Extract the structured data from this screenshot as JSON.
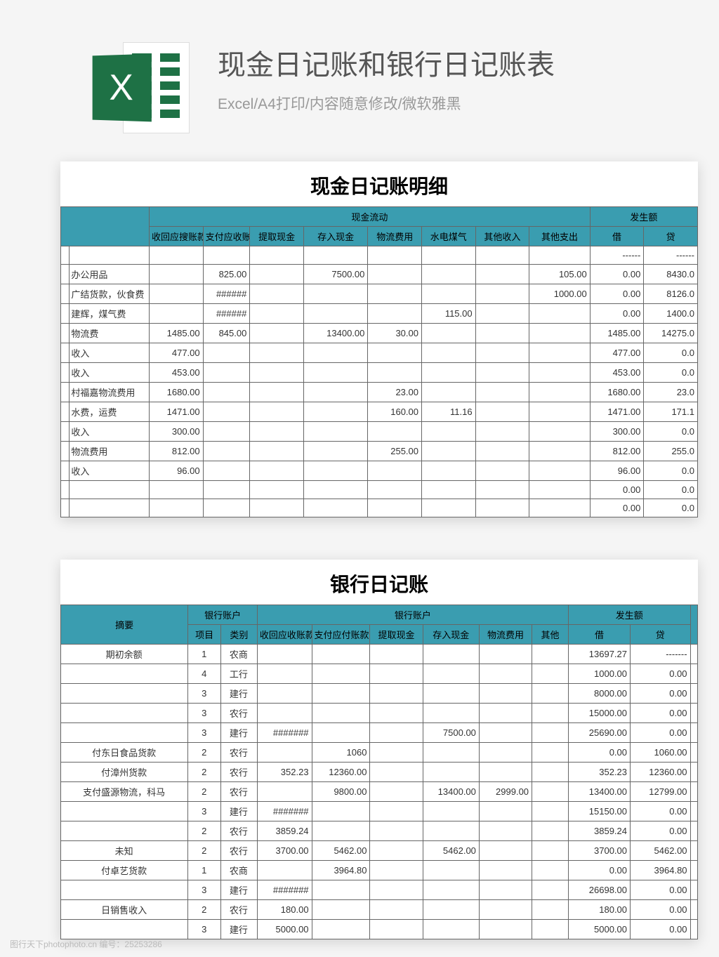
{
  "header": {
    "title": "现金日记账和银行日记账表",
    "subtitle": "Excel/A4打印/内容随意修改/微软雅黑",
    "icon_letter": "X"
  },
  "colors": {
    "header_bg": "#3a9db0",
    "excel_green": "#1e7145",
    "page_bg": "#f5f5f5"
  },
  "watermark": "图行天下photophoto.cn 编号：25253286",
  "table1": {
    "title": "现金日记账明细",
    "group_headers": {
      "g1": "现金流动",
      "g2": "发生额"
    },
    "headers": [
      "收回应搜账款",
      "支付应收账款",
      "提取现金",
      "存入现金",
      "物流费用",
      "水电煤气",
      "其他收入",
      "其他支出",
      "借",
      "贷"
    ],
    "rows": [
      {
        "a": "",
        "desc": "",
        "c": [
          "",
          "",
          "",
          "",
          "",
          "",
          "",
          "",
          "------",
          "------"
        ]
      },
      {
        "a": "",
        "desc": "办公用品",
        "c": [
          "",
          "825.00",
          "",
          "7500.00",
          "",
          "",
          "",
          "105.00",
          "0.00",
          "8430.0"
        ]
      },
      {
        "a": "",
        "desc": "广结货款，伙食费",
        "c": [
          "",
          "######",
          "",
          "",
          "",
          "",
          "",
          "1000.00",
          "0.00",
          "8126.0"
        ]
      },
      {
        "a": "",
        "desc": "建辉，煤气费",
        "c": [
          "",
          "######",
          "",
          "",
          "",
          "115.00",
          "",
          "",
          "0.00",
          "1400.0"
        ]
      },
      {
        "a": "",
        "desc": "物流费",
        "c": [
          "1485.00",
          "845.00",
          "",
          "13400.00",
          "30.00",
          "",
          "",
          "",
          "1485.00",
          "14275.0"
        ]
      },
      {
        "a": "",
        "desc": "收入",
        "c": [
          "477.00",
          "",
          "",
          "",
          "",
          "",
          "",
          "",
          "477.00",
          "0.0"
        ]
      },
      {
        "a": "",
        "desc": "收入",
        "c": [
          "453.00",
          "",
          "",
          "",
          "",
          "",
          "",
          "",
          "453.00",
          "0.0"
        ]
      },
      {
        "a": "",
        "desc": "村福嘉物流费用",
        "c": [
          "1680.00",
          "",
          "",
          "",
          "23.00",
          "",
          "",
          "",
          "1680.00",
          "23.0"
        ]
      },
      {
        "a": "",
        "desc": "水费，运费",
        "c": [
          "1471.00",
          "",
          "",
          "",
          "160.00",
          "11.16",
          "",
          "",
          "1471.00",
          "171.1"
        ]
      },
      {
        "a": "",
        "desc": "收入",
        "c": [
          "300.00",
          "",
          "",
          "",
          "",
          "",
          "",
          "",
          "300.00",
          "0.0"
        ]
      },
      {
        "a": "",
        "desc": "物流费用",
        "c": [
          "812.00",
          "",
          "",
          "",
          "255.00",
          "",
          "",
          "",
          "812.00",
          "255.0"
        ]
      },
      {
        "a": "",
        "desc": "收入",
        "c": [
          "96.00",
          "",
          "",
          "",
          "",
          "",
          "",
          "",
          "96.00",
          "0.0"
        ]
      },
      {
        "a": "",
        "desc": "",
        "c": [
          "",
          "",
          "",
          "",
          "",
          "",
          "",
          "",
          "0.00",
          "0.0"
        ]
      },
      {
        "a": "",
        "desc": "",
        "c": [
          "",
          "",
          "",
          "",
          "",
          "",
          "",
          "",
          "0.00",
          "0.0"
        ]
      }
    ]
  },
  "table2": {
    "title": "银行日记账",
    "header_row1": {
      "summary": "摘要",
      "acct1": "银行账户",
      "acct2": "银行账户",
      "amount": "发生额"
    },
    "header_row2": [
      "项目",
      "类别",
      "收回应收账款",
      "支付应付账款",
      "提取现金",
      "存入现金",
      "物流费用",
      "其他",
      "借",
      "贷"
    ],
    "rows": [
      {
        "s": "期初余额",
        "p": "1",
        "t": "农商",
        "c": [
          "",
          "",
          "",
          "",
          "",
          "",
          "13697.27",
          "-------"
        ]
      },
      {
        "s": "",
        "p": "4",
        "t": "工行",
        "c": [
          "",
          "",
          "",
          "",
          "",
          "",
          "1000.00",
          "0.00"
        ]
      },
      {
        "s": "",
        "p": "3",
        "t": "建行",
        "c": [
          "",
          "",
          "",
          "",
          "",
          "",
          "8000.00",
          "0.00"
        ]
      },
      {
        "s": "",
        "p": "3",
        "t": "农行",
        "c": [
          "",
          "",
          "",
          "",
          "",
          "",
          "15000.00",
          "0.00"
        ]
      },
      {
        "s": "",
        "p": "3",
        "t": "建行",
        "c": [
          "#######",
          "",
          "",
          "7500.00",
          "",
          "",
          "25690.00",
          "0.00"
        ]
      },
      {
        "s": "付东日食品货款",
        "p": "2",
        "t": "农行",
        "c": [
          "",
          "1060",
          "",
          "",
          "",
          "",
          "0.00",
          "1060.00"
        ]
      },
      {
        "s": "付漳州货款",
        "p": "2",
        "t": "农行",
        "c": [
          "352.23",
          "12360.00",
          "",
          "",
          "",
          "",
          "352.23",
          "12360.00"
        ]
      },
      {
        "s": "支付盛源物流，科马",
        "p": "2",
        "t": "农行",
        "c": [
          "",
          "9800.00",
          "",
          "13400.00",
          "2999.00",
          "",
          "13400.00",
          "12799.00"
        ]
      },
      {
        "s": "",
        "p": "3",
        "t": "建行",
        "c": [
          "#######",
          "",
          "",
          "",
          "",
          "",
          "15150.00",
          "0.00"
        ]
      },
      {
        "s": "",
        "p": "2",
        "t": "农行",
        "c": [
          "3859.24",
          "",
          "",
          "",
          "",
          "",
          "3859.24",
          "0.00"
        ]
      },
      {
        "s": "未知",
        "p": "2",
        "t": "农行",
        "c": [
          "3700.00",
          "5462.00",
          "",
          "5462.00",
          "",
          "",
          "3700.00",
          "5462.00"
        ]
      },
      {
        "s": "付卓艺货款",
        "p": "1",
        "t": "农商",
        "c": [
          "",
          "3964.80",
          "",
          "",
          "",
          "",
          "0.00",
          "3964.80"
        ]
      },
      {
        "s": "",
        "p": "3",
        "t": "建行",
        "c": [
          "#######",
          "",
          "",
          "",
          "",
          "",
          "26698.00",
          "0.00"
        ]
      },
      {
        "s": "日销售收入",
        "p": "2",
        "t": "农行",
        "c": [
          "180.00",
          "",
          "",
          "",
          "",
          "",
          "180.00",
          "0.00"
        ]
      },
      {
        "s": "",
        "p": "3",
        "t": "建行",
        "c": [
          "5000.00",
          "",
          "",
          "",
          "",
          "",
          "5000.00",
          "0.00"
        ]
      }
    ]
  }
}
